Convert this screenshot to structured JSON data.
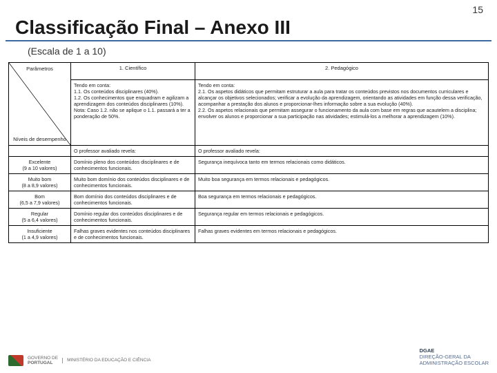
{
  "page_number": "15",
  "title": "Classificação Final – Anexo III",
  "subtitle": "(Escala de 1 a 10)",
  "colors": {
    "title_underline": "#3b6aa0",
    "border": "#000000",
    "text": "#222222",
    "footer_text": "#556b8f"
  },
  "table": {
    "header_diag_top": "Parâmetros",
    "header_diag_bottom": "Níveis de desempenho",
    "col1_title": "1. Científico",
    "col2_title": "2. Pedagógico",
    "col1_intro": "Tendo em conta:\n1.1. Os conteúdos disciplinares (40%).\n1.2. Os conhecimentos que enquadram e agilizam a aprendizagem dos conteúdos disciplinares (10%).\nNota: Caso 1.2. não se aplique o 1.1. passará a ter a ponderação de 50%.",
    "col2_intro": "Tendo em conta:\n2.1. Os aspetos didáticos que permitam estruturar a aula para tratar os conteúdos previstos nos documentos curriculares e alcançar os objetivos selecionados; verificar a evolução da aprendizagem, orientando as atividades em função dessa verificação, acompanhar a prestação dos alunos e proporcionar-lhes informação sobre a sua evolução (40%).\n2.2. Os aspetos relacionais que permitam assegurar o funcionamento da aula com base em regras que acautelem a disciplina; envolver os alunos e proporcionar a sua participação nas atividades; estimulá-los a melhorar a aprendizagem (10%).",
    "reveal_sci": "O professor avaliado revela:",
    "reveal_ped": "O professor avaliado revela:",
    "rows": [
      {
        "level_name": "Excelente",
        "level_range": "(9 a 10 valores)",
        "sci": "Domínio pleno dos conteúdos disciplinares e de conhecimentos funcionais.",
        "ped": "Segurança inequívoca tanto em termos relacionais como didáticos."
      },
      {
        "level_name": "Muito bom",
        "level_range": "(8 a 8,9 valores)",
        "sci": "Muito bom domínio dos conteúdos disciplinares e de conhecimentos funcionais.",
        "ped": "Muito boa segurança em termos relacionais e pedagógicos."
      },
      {
        "level_name": "Bom",
        "level_range": "(6,5 a 7,9 valores)",
        "sci": "Bom domínio dos conteúdos disciplinares e de conhecimentos funcionais.",
        "ped": "Boa segurança em termos relacionais e pedagógicos."
      },
      {
        "level_name": "Regular",
        "level_range": "(5 a 6,4 valores)",
        "sci": "Domínio regular dos conteúdos disciplinares e de conhecimentos funcionais.",
        "ped": "Segurança regular em termos relacionais e pedagógicos."
      },
      {
        "level_name": "Insuficiente",
        "level_range": "(1 a 4,9 valores)",
        "sci": "Falhas graves evidentes nos conteúdos disciplinares e de conhecimentos funcionais.",
        "ped": "Falhas graves evidentes em termos relacionais e pedagógicos."
      }
    ]
  },
  "footer": {
    "gov_line1": "GOVERNO DE",
    "gov_line2": "PORTUGAL",
    "ministry": "MINISTÉRIO DA EDUCAÇÃO E CIÊNCIA",
    "org_line1": "DGAE",
    "org_line2": "DIREÇÃO-GERAL DA",
    "org_line3": "ADMINISTRAÇÃO ESCOLAR"
  }
}
